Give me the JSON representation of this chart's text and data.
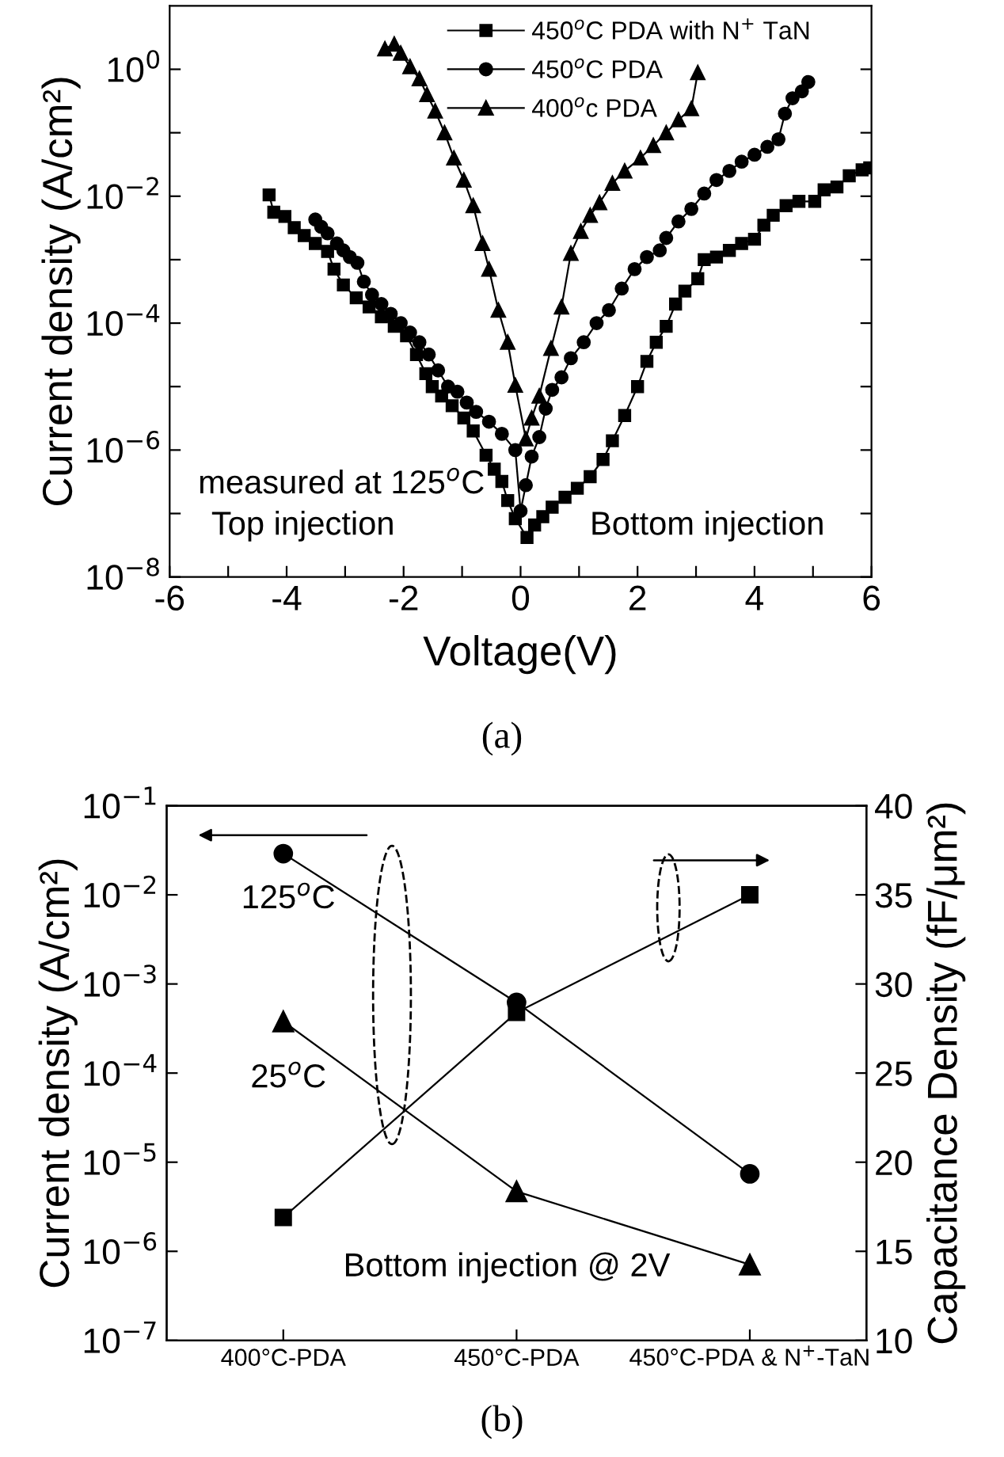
{
  "chart_data": [
    {
      "type": "line",
      "xlabel": "Voltage(V)",
      "ylabel": "Current density (A/cm²)",
      "log": "y",
      "legend": "top right",
      "grid": false,
      "line_style": "solid",
      "xlim": [
        -6,
        6
      ],
      "xticks": [
        -6,
        {
          "value": -5,
          "label": null
        },
        -4,
        {
          "value": -3,
          "label": null
        },
        -2,
        {
          "value": -1,
          "label": null
        },
        0,
        {
          "value": 1,
          "label": null
        },
        2,
        {
          "value": 3,
          "label": null
        },
        4,
        {
          "value": 5,
          "label": null
        },
        6
      ],
      "ylim": [
        1e-08,
        10
      ],
      "yticks": [
        {
          "value": 1e-08,
          "label": "10$^{−8}$"
        },
        {
          "value": 1e-07,
          "label": null
        },
        {
          "value": 1e-06,
          "label": "10$^{−6}$"
        },
        {
          "value": 1e-05,
          "label": null
        },
        {
          "value": 0.0001,
          "label": "10$^{−4}$"
        },
        {
          "value": 0.001,
          "label": null
        },
        {
          "value": 0.01,
          "label": "10$^{−2}$"
        },
        {
          "value": 0.1,
          "label": null
        },
        {
          "value": 1,
          "label": "10$^{0}$"
        }
      ],
      "annotations": [
        "measured at 125$^{o}$C",
        "Top injection",
        "Bottom injection",
        "(a)"
      ],
      "series": [
        {
          "name": "450$^{o}$C PDA with N$^{+}$ TaN",
          "color": "#000000",
          "marker": "square",
          "x": [
            -4.3,
            -4.22,
            -4.03,
            -3.87,
            -3.7,
            -3.51,
            -3.3,
            -3.19,
            -3.03,
            -2.81,
            -2.59,
            -2.38,
            -2.16,
            -1.95,
            -1.78,
            -1.62,
            -1.51,
            -1.35,
            -1.17,
            -0.97,
            -0.81,
            -0.59,
            -0.45,
            -0.32,
            -0.22,
            -0.09,
            0.11,
            0.24,
            0.38,
            0.54,
            0.76,
            0.97,
            1.19,
            1.41,
            1.57,
            1.78,
            2.0,
            2.16,
            2.32,
            2.49,
            2.65,
            2.81,
            3.03,
            3.14,
            3.35,
            3.57,
            3.78,
            4.0,
            4.16,
            4.32,
            4.54,
            4.76,
            5.03,
            5.19,
            5.41,
            5.62,
            5.84,
            5.97
          ],
          "values": [
            0.0105,
            0.0056,
            0.0048,
            0.0032,
            0.0024,
            0.0018,
            0.00135,
            0.00071,
            0.0004,
            0.00025,
            0.00018,
            0.000126,
            8.9e-05,
            6.3e-05,
            3.2e-05,
            1.6e-05,
            1e-05,
            7.1e-06,
            5e-06,
            3.2e-06,
            2e-06,
            8.3e-07,
            5e-07,
            3.2e-07,
            1.6e-07,
            8.3e-08,
            4.2e-08,
            6.6e-08,
            8.9e-08,
            1.26e-07,
            1.8e-07,
            2.5e-07,
            3.8e-07,
            7.1e-07,
            1.4e-06,
            3.5e-06,
            1e-05,
            2.5e-05,
            5e-05,
            8.9e-05,
            0.0002,
            0.00032,
            0.0005,
            0.001,
            0.0011,
            0.0014,
            0.0018,
            0.0021,
            0.0035,
            0.005,
            0.0071,
            0.0083,
            0.0083,
            0.0126,
            0.014,
            0.021,
            0.026,
            0.028
          ]
        },
        {
          "name": "450$^{o}$C PDA",
          "color": "#000000",
          "marker": "circle",
          "x": [
            -3.51,
            -3.41,
            -3.3,
            -3.14,
            -3.03,
            -2.92,
            -2.79,
            -2.68,
            -2.54,
            -2.38,
            -2.22,
            -2.05,
            -1.89,
            -1.73,
            -1.57,
            -1.41,
            -1.24,
            -1.08,
            -0.92,
            -0.76,
            -0.54,
            -0.32,
            -0.09,
            0.0,
            0.09,
            0.19,
            0.32,
            0.43,
            0.54,
            0.7,
            0.86,
            1.08,
            1.3,
            1.51,
            1.73,
            1.95,
            2.16,
            2.38,
            2.49,
            2.7,
            2.92,
            3.14,
            3.35,
            3.57,
            3.78,
            4.0,
            4.22,
            4.41,
            4.52,
            4.65,
            4.81,
            4.92
          ],
          "values": [
            0.0043,
            0.0033,
            0.0026,
            0.0018,
            0.0014,
            0.0011,
            0.00089,
            0.00045,
            0.00028,
            0.0002,
            0.00014,
            0.0001,
            7.1e-05,
            5e-05,
            3.2e-05,
            1.8e-05,
            1e-05,
            8.3e-06,
            5.6e-06,
            4e-06,
            2.8e-06,
            1.8e-06,
            1e-06,
            1.1e-07,
            2.8e-07,
            7.9e-07,
            1.6e-06,
            4.5e-06,
            8.9e-06,
            1.4e-05,
            2.8e-05,
            5e-05,
            0.0001,
            0.00016,
            0.00035,
            0.00071,
            0.0011,
            0.0014,
            0.0022,
            0.004,
            0.0063,
            0.011,
            0.018,
            0.025,
            0.035,
            0.045,
            0.06,
            0.079,
            0.2,
            0.35,
            0.45,
            0.63
          ]
        },
        {
          "name": "400$^{o}$c PDA",
          "color": "#000000",
          "marker": "triangle",
          "x": [
            -2.32,
            -2.16,
            -2.05,
            -1.89,
            -1.73,
            -1.6,
            -1.46,
            -1.3,
            -1.14,
            -0.97,
            -0.81,
            -0.65,
            -0.54,
            -0.38,
            -0.22,
            -0.09,
            0.09,
            0.19,
            0.32,
            0.52,
            0.7,
            0.86,
            1.03,
            1.19,
            1.35,
            1.57,
            1.78,
            2.05,
            2.27,
            2.49,
            2.7,
            2.92,
            3.03
          ],
          "values": [
            2.1,
            2.5,
            1.8,
            1.1,
            0.71,
            0.4,
            0.22,
            0.1,
            0.04,
            0.018,
            0.0071,
            0.0018,
            0.00071,
            0.00016,
            5e-05,
            1.05e-05,
            1.5e-06,
            3.2e-06,
            7.1e-06,
            4e-05,
            0.00018,
            0.00126,
            0.0028,
            0.005,
            0.0079,
            0.016,
            0.025,
            0.04,
            0.063,
            0.1,
            0.16,
            0.24,
            0.89
          ]
        }
      ]
    },
    {
      "type": "line",
      "ylabel": "Current density (A/cm²)",
      "y2label": "Capacitance Density (fF/μm²)",
      "log": "y",
      "legend": false,
      "grid": false,
      "line_style": "solid",
      "categories": [
        "400°C-PDA",
        "450°C-PDA",
        "450°C-PDA & N$^{+}$-TaN"
      ],
      "ylim": [
        1e-07,
        0.1
      ],
      "yticks": [
        {
          "value": 1e-07,
          "label": "10$^{−7}$"
        },
        {
          "value": 1e-06,
          "label": "10$^{−6}$"
        },
        {
          "value": 1e-05,
          "label": "10$^{−5}$"
        },
        {
          "value": 0.0001,
          "label": "10$^{−4}$"
        },
        {
          "value": 0.001,
          "label": "10$^{−3}$"
        },
        {
          "value": 0.01,
          "label": "10$^{−2}$"
        },
        {
          "value": 0.1,
          "label": "10$^{−1}$"
        }
      ],
      "y2lim": [
        10,
        40
      ],
      "y2ticks": [
        10,
        15,
        20,
        25,
        30,
        35,
        40
      ],
      "annotations": [
        "Bottom injection @ 2V",
        "(b)"
      ],
      "series": [
        {
          "name": "125$^{o}$C",
          "color": "#000000",
          "marker": "circle",
          "values": [
            0.029,
            0.00062,
            7.4e-06
          ]
        },
        {
          "name": "25$^{o}$C",
          "color": "#000000",
          "marker": "triangle",
          "values": [
            0.00038,
            4.7e-06,
            7.1e-07
          ]
        },
        {
          "color": "#000000",
          "marker": "square",
          "axis": "y2",
          "values": [
            16.9,
            28.4,
            35.0
          ]
        }
      ]
    }
  ]
}
